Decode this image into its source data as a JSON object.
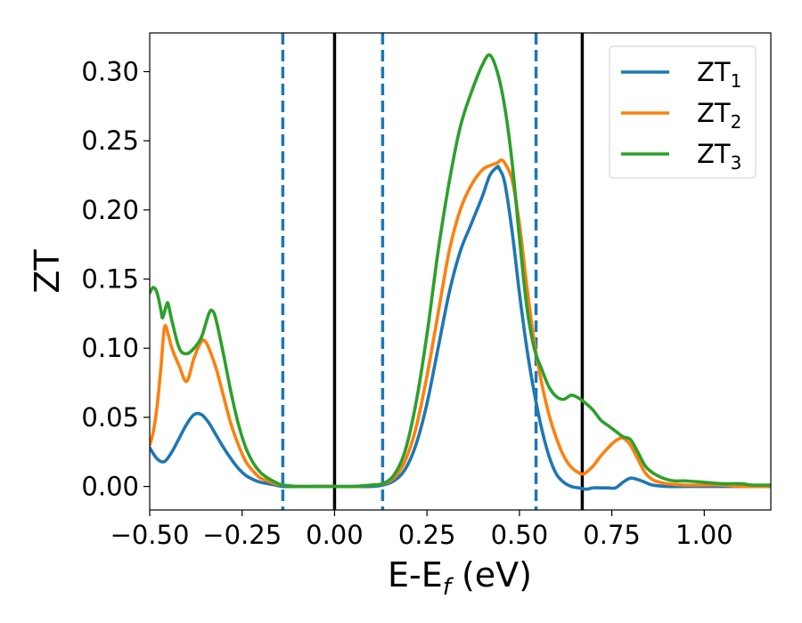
{
  "chart_data": {
    "type": "line",
    "title": "",
    "xlabel": {
      "main": "E-E",
      "sub": "f",
      "unit": " (eV)"
    },
    "ylabel": "ZT",
    "xlim": [
      -0.5,
      1.18
    ],
    "ylim": [
      -0.017,
      0.328
    ],
    "grid": false,
    "legend_placement": "top-right",
    "x_ticks": [
      -0.5,
      -0.25,
      0.0,
      0.25,
      0.5,
      0.75,
      1.0
    ],
    "x_tick_labels": [
      "−0.50",
      "−0.25",
      "0.00",
      "0.25",
      "0.50",
      "0.75",
      "1.00"
    ],
    "y_ticks": [
      0.0,
      0.05,
      0.1,
      0.15,
      0.2,
      0.25,
      0.3
    ],
    "y_tick_labels": [
      "0.00",
      "0.05",
      "0.10",
      "0.15",
      "0.20",
      "0.25",
      "0.30"
    ],
    "vertical_lines": [
      {
        "x": -0.14,
        "style": "dashed",
        "color": "#1f77b4"
      },
      {
        "x": 0.0,
        "style": "solid",
        "color": "#000000"
      },
      {
        "x": 0.13,
        "style": "dashed",
        "color": "#1f77b4"
      },
      {
        "x": 0.545,
        "style": "dashed",
        "color": "#1f77b4"
      },
      {
        "x": 0.67,
        "style": "solid",
        "color": "#000000"
      }
    ],
    "series": [
      {
        "name": "ZT",
        "subscript": "1",
        "color": "#1f77b4",
        "x": [
          -0.5,
          -0.48,
          -0.46,
          -0.44,
          -0.42,
          -0.4,
          -0.38,
          -0.36,
          -0.34,
          -0.32,
          -0.3,
          -0.28,
          -0.26,
          -0.24,
          -0.22,
          -0.2,
          -0.18,
          -0.16,
          -0.14,
          -0.1,
          -0.05,
          0.0,
          0.05,
          0.1,
          0.13,
          0.16,
          0.19,
          0.22,
          0.25,
          0.28,
          0.31,
          0.34,
          0.37,
          0.4,
          0.42,
          0.44,
          0.445,
          0.46,
          0.48,
          0.5,
          0.52,
          0.54,
          0.56,
          0.58,
          0.6,
          0.62,
          0.64,
          0.66,
          0.68,
          0.7,
          0.72,
          0.74,
          0.76,
          0.78,
          0.8,
          0.82,
          0.84,
          0.86,
          0.9,
          0.95,
          1.0,
          1.05,
          1.1,
          1.18
        ],
        "y": [
          0.028,
          0.02,
          0.018,
          0.025,
          0.035,
          0.045,
          0.052,
          0.052,
          0.046,
          0.037,
          0.028,
          0.02,
          0.013,
          0.008,
          0.005,
          0.003,
          0.002,
          0.001,
          0.0,
          0.0,
          0.0,
          0.0,
          0.0,
          0.0,
          0.001,
          0.004,
          0.012,
          0.03,
          0.06,
          0.1,
          0.14,
          0.17,
          0.19,
          0.21,
          0.225,
          0.231,
          0.23,
          0.22,
          0.185,
          0.14,
          0.1,
          0.068,
          0.042,
          0.022,
          0.009,
          0.003,
          0.0,
          -0.001,
          -0.002,
          -0.001,
          -0.001,
          -0.001,
          -0.001,
          0.003,
          0.006,
          0.005,
          0.003,
          0.001,
          0.0,
          0.0,
          0.0,
          0.0,
          0.0,
          0.0
        ]
      },
      {
        "name": "ZT",
        "subscript": "2",
        "color": "#ff7f0e",
        "x": [
          -0.5,
          -0.49,
          -0.48,
          -0.47,
          -0.46,
          -0.45,
          -0.44,
          -0.42,
          -0.4,
          -0.38,
          -0.36,
          -0.35,
          -0.34,
          -0.32,
          -0.3,
          -0.28,
          -0.26,
          -0.24,
          -0.22,
          -0.2,
          -0.18,
          -0.16,
          -0.14,
          -0.1,
          -0.05,
          0.0,
          0.05,
          0.1,
          0.13,
          0.16,
          0.19,
          0.22,
          0.25,
          0.28,
          0.31,
          0.34,
          0.37,
          0.4,
          0.42,
          0.44,
          0.45,
          0.46,
          0.48,
          0.5,
          0.52,
          0.54,
          0.56,
          0.58,
          0.6,
          0.62,
          0.64,
          0.66,
          0.67,
          0.68,
          0.7,
          0.72,
          0.74,
          0.76,
          0.78,
          0.8,
          0.82,
          0.84,
          0.86,
          0.88,
          0.9,
          0.95,
          1.0,
          1.05,
          1.1,
          1.18
        ],
        "y": [
          0.03,
          0.04,
          0.058,
          0.085,
          0.115,
          0.11,
          0.1,
          0.087,
          0.076,
          0.093,
          0.105,
          0.105,
          0.1,
          0.085,
          0.065,
          0.045,
          0.03,
          0.018,
          0.011,
          0.006,
          0.004,
          0.002,
          0.001,
          0.0,
          0.0,
          0.0,
          0.0,
          0.001,
          0.002,
          0.006,
          0.018,
          0.042,
          0.08,
          0.125,
          0.17,
          0.2,
          0.218,
          0.229,
          0.232,
          0.234,
          0.236,
          0.234,
          0.222,
          0.19,
          0.145,
          0.105,
          0.075,
          0.052,
          0.035,
          0.022,
          0.014,
          0.01,
          0.009,
          0.01,
          0.015,
          0.022,
          0.028,
          0.033,
          0.035,
          0.03,
          0.02,
          0.01,
          0.005,
          0.003,
          0.002,
          0.001,
          0.001,
          0.001,
          0.0,
          0.0
        ]
      },
      {
        "name": "ZT",
        "subscript": "3",
        "color": "#2ca02c",
        "x": [
          -0.5,
          -0.49,
          -0.48,
          -0.47,
          -0.465,
          -0.455,
          -0.45,
          -0.44,
          -0.42,
          -0.4,
          -0.38,
          -0.36,
          -0.34,
          -0.33,
          -0.32,
          -0.3,
          -0.28,
          -0.26,
          -0.24,
          -0.22,
          -0.2,
          -0.18,
          -0.16,
          -0.14,
          -0.1,
          -0.05,
          0.0,
          0.05,
          0.1,
          0.13,
          0.16,
          0.19,
          0.22,
          0.25,
          0.28,
          0.31,
          0.34,
          0.37,
          0.4,
          0.42,
          0.44,
          0.46,
          0.48,
          0.5,
          0.52,
          0.54,
          0.56,
          0.58,
          0.6,
          0.62,
          0.64,
          0.66,
          0.68,
          0.7,
          0.72,
          0.74,
          0.76,
          0.78,
          0.8,
          0.82,
          0.84,
          0.86,
          0.88,
          0.9,
          0.92,
          0.95,
          1.0,
          1.05,
          1.1,
          1.13,
          1.18
        ],
        "y": [
          0.14,
          0.144,
          0.14,
          0.128,
          0.122,
          0.131,
          0.132,
          0.12,
          0.1,
          0.096,
          0.1,
          0.108,
          0.125,
          0.127,
          0.12,
          0.095,
          0.068,
          0.045,
          0.028,
          0.017,
          0.01,
          0.006,
          0.003,
          0.001,
          0.0,
          0.0,
          0.0,
          0.0,
          0.001,
          0.002,
          0.008,
          0.025,
          0.06,
          0.11,
          0.17,
          0.22,
          0.26,
          0.285,
          0.305,
          0.312,
          0.3,
          0.275,
          0.235,
          0.18,
          0.13,
          0.1,
          0.085,
          0.072,
          0.065,
          0.063,
          0.066,
          0.064,
          0.06,
          0.055,
          0.048,
          0.044,
          0.04,
          0.036,
          0.034,
          0.025,
          0.015,
          0.01,
          0.007,
          0.005,
          0.004,
          0.004,
          0.003,
          0.002,
          0.002,
          0.001,
          0.001
        ]
      }
    ]
  }
}
